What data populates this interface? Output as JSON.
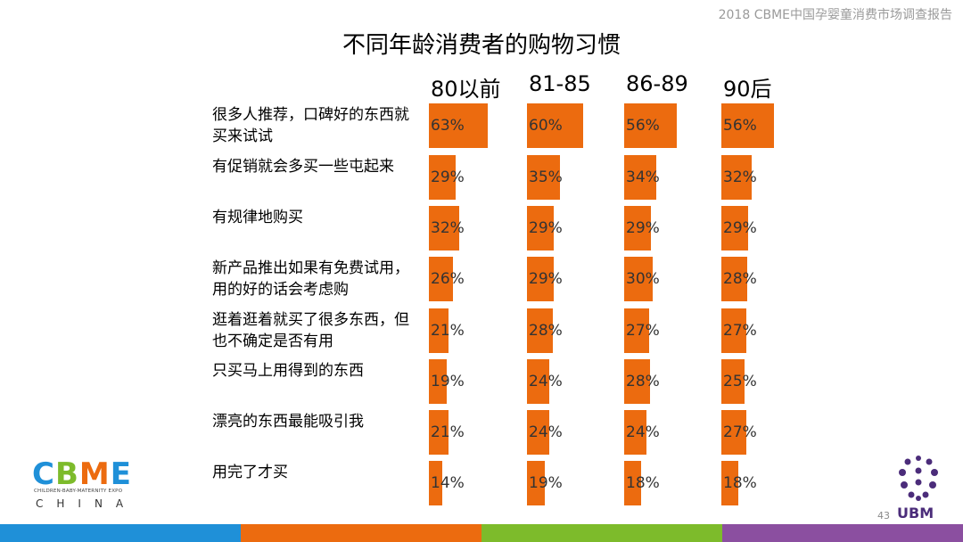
{
  "header_note": "2018 CBME中国孕婴童消费市场调查报告",
  "page_number": "43",
  "logos": {
    "cbme_subtitle": "CHILDREN-BABY-MATERNITY EXPO",
    "cbme_china": "CHINA",
    "ubm": "UBM"
  },
  "colors": {
    "bar": "#ec6b0f",
    "footer": [
      "#1f90d8",
      "#ec6b0f",
      "#7dbb2b",
      "#8b4fa0"
    ],
    "ubm": "#4b2c7a"
  },
  "chart_data": {
    "type": "bar",
    "title": "不同年龄消费者的购物习惯",
    "groups": [
      "80以前",
      "81-85",
      "86-89",
      "90后"
    ],
    "categories": [
      "很多人推荐，口碑好的东西就买来试试",
      "有促销就会多买一些屯起来",
      "有规律地购买",
      "新产品推出如果有免费试用，用的好的话会考虑购",
      "逛着逛着就买了很多东西，但也不确定是否有用",
      "只买马上用得到的东西",
      "漂亮的东西最能吸引我",
      "用完了才买"
    ],
    "series": [
      {
        "name": "80以前",
        "values": [
          63,
          29,
          32,
          26,
          21,
          19,
          21,
          14
        ],
        "labels": [
          "63%",
          "29%",
          "32%",
          "26%",
          "21%",
          "19%",
          "21%",
          "14%"
        ]
      },
      {
        "name": "81-85",
        "values": [
          60,
          35,
          29,
          29,
          28,
          24,
          24,
          19
        ],
        "labels": [
          "60%",
          "35%",
          "29%",
          "29%",
          "28%",
          "24%",
          "24%",
          "19%"
        ]
      },
      {
        "name": "86-89",
        "values": [
          56,
          34,
          29,
          30,
          27,
          28,
          24,
          18
        ],
        "labels": [
          "56%",
          "34%",
          "29%",
          "30%",
          "27%",
          "28%",
          "24%",
          "18%"
        ]
      },
      {
        "name": "90后",
        "values": [
          56,
          32,
          29,
          28,
          27,
          25,
          27,
          18
        ],
        "labels": [
          "56%",
          "32%",
          "29%",
          "28%",
          "27%",
          "25%",
          "27%",
          "18%"
        ]
      }
    ],
    "value_unit": "%",
    "grid": false,
    "legend": "none"
  }
}
